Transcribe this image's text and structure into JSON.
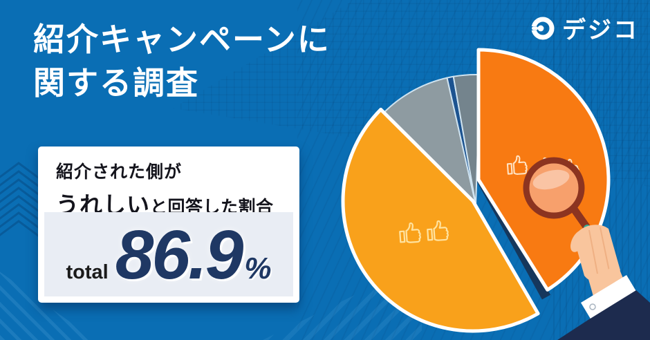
{
  "page": {
    "background_color": "#0a6eb4",
    "accent_dark_navy": "#1f3864",
    "card_background": "#ffffff",
    "total_box_background": "#e9edf4"
  },
  "logo": {
    "icon": "digico-d-icon",
    "text": "デジコ"
  },
  "header": {
    "title_line1": "紹介キャンペーンに",
    "title_line2": "関する調査"
  },
  "stat_card": {
    "heading_line1": "紹介された側が",
    "heading_emphasis": "うれしい",
    "heading_rest": "と回答した割合",
    "total_label": "total",
    "total_value": "86.9",
    "unit": "%"
  },
  "chart_data": {
    "type": "pie",
    "title": "紹介キャンペーンに関する調査",
    "annotation": "紹介された側がうれしいと回答した割合 total 86.9%",
    "total": {
      "label": "total",
      "value": 86.9,
      "unit": "%"
    },
    "legend": "none",
    "start_angle_deg": 0,
    "clockwise": true,
    "segments": [
      {
        "name": "happy-main-exploded",
        "color": "#f87a12",
        "value": 41.1,
        "icons": "thumbs-up-icon x3"
      },
      {
        "name": "happy-secondary",
        "color": "#f9a11b",
        "value": 45.8,
        "icons": "thumbs-up-icon x2"
      },
      {
        "name": "other-gray",
        "color": "#8e9ba1",
        "value": 9.0
      },
      {
        "name": "other-navy-sliver",
        "color": "#1c5390",
        "value": 0.8
      },
      {
        "name": "other-dark-gray",
        "color": "#74848d",
        "value": 3.3
      }
    ],
    "values_note": "slice split estimated from pixels; orange slices together equal labeled 86.9%",
    "decorations": [
      "thumbs-up-icon",
      "magnifying-glass-icon",
      "hand-with-sleeve"
    ]
  }
}
